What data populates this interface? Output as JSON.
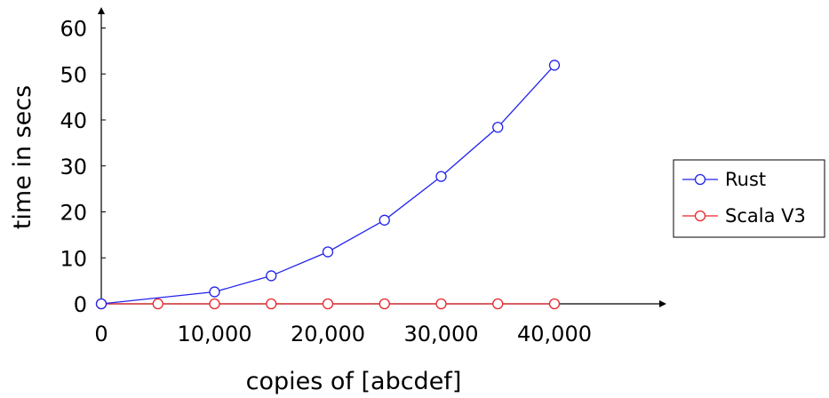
{
  "chart_data": {
    "type": "line",
    "xlabel": "copies of [abcdef]",
    "ylabel": "time in secs",
    "xlim": [
      0,
      50000
    ],
    "ylim": [
      0,
      60
    ],
    "xticks": [
      0,
      10000,
      20000,
      30000,
      40000
    ],
    "xtick_labels": [
      "0",
      "10,000",
      "20,000",
      "30,000",
      "40,000"
    ],
    "yticks": [
      0,
      10,
      20,
      30,
      40,
      50,
      60
    ],
    "ytick_labels": [
      "0",
      "10",
      "20",
      "30",
      "40",
      "50",
      "60"
    ],
    "grid": false,
    "legend_position": "right",
    "series": [
      {
        "name": "Rust",
        "color": "#2222ee",
        "marker": "open-circle",
        "x": [
          0,
          10000,
          15000,
          20000,
          25000,
          30000,
          35000,
          40000
        ],
        "y": [
          0,
          2.6,
          6.1,
          11.3,
          18.2,
          27.7,
          38.4,
          51.9
        ]
      },
      {
        "name": "Scala V3",
        "color": "#e8262c",
        "marker": "open-circle",
        "x": [
          0,
          5000,
          10000,
          15000,
          20000,
          25000,
          30000,
          35000,
          40000
        ],
        "y": [
          0,
          0,
          0,
          0,
          0,
          0,
          0,
          0,
          0
        ]
      }
    ]
  }
}
